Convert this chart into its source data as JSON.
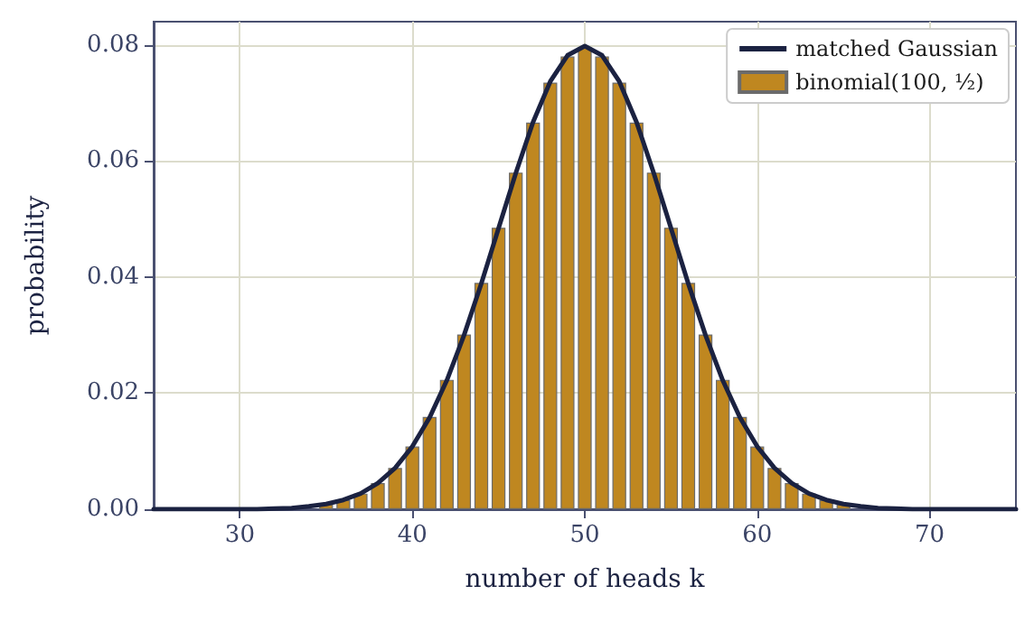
{
  "chart_data": {
    "type": "bar",
    "xlabel": "number of heads k",
    "ylabel": "probability",
    "xlim": [
      25,
      75
    ],
    "xticks": [
      30,
      40,
      50,
      60,
      70
    ],
    "ylim": [
      0,
      0.084
    ],
    "yticks": [
      {
        "value": 0,
        "label": "0.00"
      },
      {
        "value": 0.02,
        "label": "0.02"
      },
      {
        "value": 0.04,
        "label": "0.04"
      },
      {
        "value": 0.06,
        "label": "0.06"
      },
      {
        "value": 0.08,
        "label": "0.08"
      }
    ],
    "grid": true,
    "legend": "top right",
    "series": [
      {
        "name": "matched Gaussian",
        "type": "line",
        "color": "#1b2241",
        "marker": "none",
        "x": [
          25,
          26,
          27,
          28,
          29,
          30,
          31,
          32,
          33,
          34,
          35,
          36,
          37,
          38,
          39,
          40,
          41,
          42,
          43,
          44,
          45,
          46,
          47,
          48,
          49,
          50,
          51,
          52,
          53,
          54,
          55,
          56,
          57,
          58,
          59,
          60,
          61,
          62,
          63,
          64,
          65,
          66,
          67,
          68,
          69,
          70,
          71,
          72,
          73,
          74,
          75
        ],
        "values": [
          0,
          0,
          0,
          0,
          0,
          0,
          0,
          0.0001,
          0.0002,
          0.0005,
          0.0009,
          0.0016,
          0.0027,
          0.0045,
          0.0071,
          0.0108,
          0.0158,
          0.0222,
          0.03,
          0.0389,
          0.0484,
          0.0579,
          0.0667,
          0.0737,
          0.0782,
          0.0798,
          0.0782,
          0.0737,
          0.0667,
          0.0579,
          0.0484,
          0.0389,
          0.03,
          0.0222,
          0.0158,
          0.0108,
          0.0071,
          0.0045,
          0.0027,
          0.0016,
          0.0009,
          0.0005,
          0.0002,
          0.0001,
          0,
          0,
          0,
          0,
          0,
          0,
          0
        ]
      },
      {
        "name": "binomial(100, ½)",
        "color": "#bf8720",
        "x": [
          25,
          26,
          27,
          28,
          29,
          30,
          31,
          32,
          33,
          34,
          35,
          36,
          37,
          38,
          39,
          40,
          41,
          42,
          43,
          44,
          45,
          46,
          47,
          48,
          49,
          50,
          51,
          52,
          53,
          54,
          55,
          56,
          57,
          58,
          59,
          60,
          61,
          62,
          63,
          64,
          65,
          66,
          67,
          68,
          69,
          70,
          71,
          72,
          73,
          74,
          75
        ],
        "values": [
          0,
          0,
          0,
          0,
          0,
          0,
          0,
          null,
          0.0002,
          null,
          0.0009,
          0.0016,
          0.0027,
          0.0045,
          0.0071,
          0.0108,
          0.0159,
          0.0223,
          0.0301,
          0.039,
          0.0485,
          0.058,
          0.0666,
          0.0735,
          0.078,
          0.0796,
          0.078,
          0.0735,
          0.0666,
          0.058,
          0.0485,
          0.039,
          0.0301,
          0.0223,
          0.0159,
          0.0108,
          0.0071,
          0.0045,
          0.0027,
          0.0016,
          0.0009,
          null,
          0.0002,
          null,
          0,
          0,
          0,
          0,
          0,
          0,
          0
        ]
      }
    ]
  }
}
